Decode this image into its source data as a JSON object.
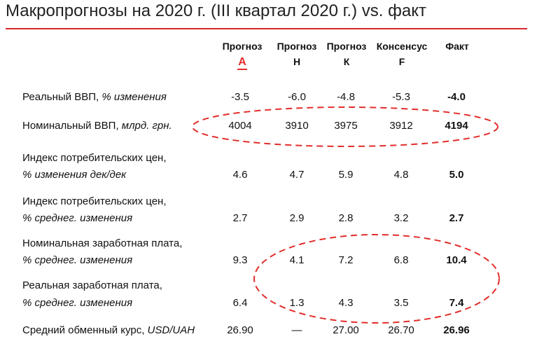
{
  "title": "Макропрогнозы на 2020 г. (III квартал 2020 г.) vs. факт",
  "colors": {
    "accent": "#d9262b",
    "oval": "#e22d2a"
  },
  "headers": [
    {
      "line1": "Прогноз",
      "line2": "А",
      "logo": true
    },
    {
      "line1": "Прогноз",
      "line2": "Н"
    },
    {
      "line1": "Прогноз",
      "line2": "К"
    },
    {
      "line1": "Консенсус",
      "line2": "F"
    },
    {
      "line1": "Факт",
      "line2": ""
    }
  ],
  "rows": [
    {
      "label_main": "Реальный ВВП, ",
      "label_unit": "% изменения",
      "label_line2": "",
      "values": [
        "-3.5",
        "-6.0",
        "-4.8",
        "-5.3",
        "-4.0"
      ]
    },
    {
      "label_main": "Номинальный ВВП, ",
      "label_unit": "млрд. грн.",
      "label_line2": "",
      "values": [
        "4004",
        "3910",
        "3975",
        "3912",
        "4194"
      ]
    },
    {
      "label_main": "Индекс потребительских цен,",
      "label_unit": "",
      "label_line2": "% изменения дек/дек",
      "values": [
        "4.6",
        "4.7",
        "5.9",
        "4.8",
        "5.0"
      ]
    },
    {
      "label_main": "Индекс потребительских цен,",
      "label_unit": "",
      "label_line2": "% среднег. изменения",
      "values": [
        "2.7",
        "2.9",
        "2.8",
        "3.2",
        "2.7"
      ]
    },
    {
      "label_main": "Номинальная заработная плата,",
      "label_unit": "",
      "label_line2": "% среднег. изменения",
      "values": [
        "9.3",
        "4.1",
        "7.2",
        "6.8",
        "10.4"
      ]
    },
    {
      "label_main": "Реальная заработная плата,",
      "label_unit": "",
      "label_line2": "% среднег. изменения",
      "values": [
        "6.4",
        "1.3",
        "4.3",
        "3.5",
        "7.4"
      ]
    },
    {
      "label_main": "Средний обменный курс, ",
      "label_unit": "USD/UAH",
      "label_line2": "",
      "values": [
        "26.90",
        "—",
        "27.00",
        "26.70",
        "26.96"
      ]
    }
  ]
}
